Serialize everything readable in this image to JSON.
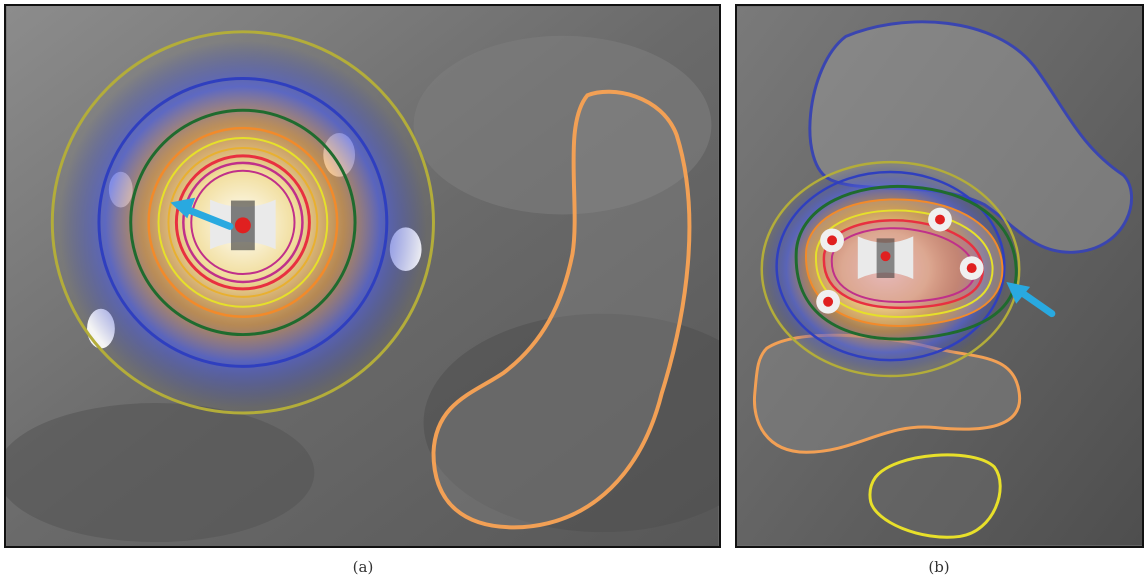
{
  "panels": [
    {
      "id": "a",
      "caption": "(a)"
    },
    {
      "id": "b",
      "caption": "(b)"
    }
  ],
  "colors": {
    "contour_yellow_olive": "#b3ad3a",
    "contour_blue": "#2f3fbf",
    "contour_green": "#1f6b2e",
    "contour_orange": "#f28a2a",
    "contour_yellow": "#e6e02a",
    "contour_red": "#e83040",
    "contour_magenta": "#c0308a",
    "organ_orange": "#f2a055",
    "organ_blue": "#3a45b0",
    "organ_yellow": "#e8e02a",
    "arrow": "#29a9e0",
    "source_dot": "#e02020"
  },
  "icons": [
    "arrow-icon"
  ]
}
